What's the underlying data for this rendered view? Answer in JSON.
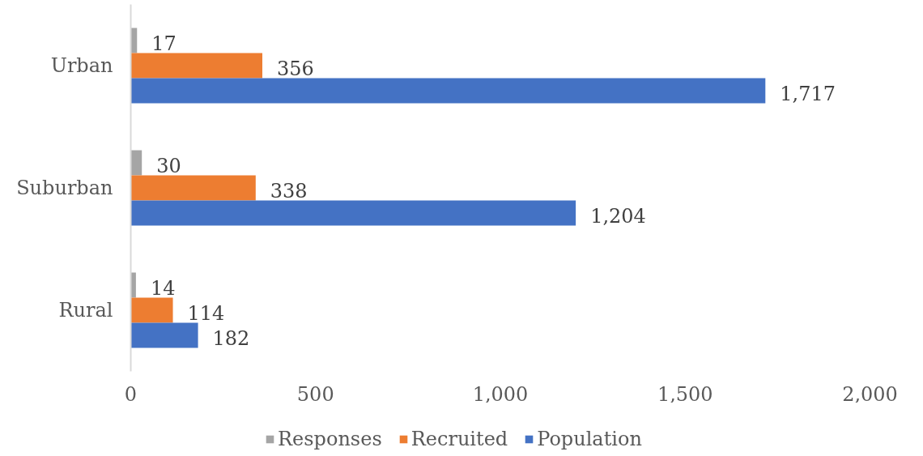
{
  "chart_data": {
    "type": "bar",
    "orientation": "horizontal",
    "categories": [
      "Urban",
      "Suburban",
      "Rural"
    ],
    "series": [
      {
        "name": "Responses",
        "color": "#a5a5a5",
        "values": [
          17,
          30,
          14
        ],
        "value_labels": [
          "17",
          "30",
          "14"
        ]
      },
      {
        "name": "Recruited",
        "color": "#ed7d31",
        "values": [
          356,
          338,
          114
        ],
        "value_labels": [
          "356",
          "338",
          "114"
        ]
      },
      {
        "name": "Population",
        "color": "#4472c4",
        "values": [
          1717,
          1204,
          182
        ],
        "value_labels": [
          "1,717",
          "1,204",
          "182"
        ]
      }
    ],
    "xlim": [
      0,
      2000
    ],
    "xticks": [
      0,
      500,
      {
        "value": 1000,
        "label": "1,000"
      },
      {
        "value": 1500,
        "label": "1,500"
      },
      {
        "value": 2000,
        "label": "2,000"
      }
    ],
    "legend": "bottom"
  }
}
